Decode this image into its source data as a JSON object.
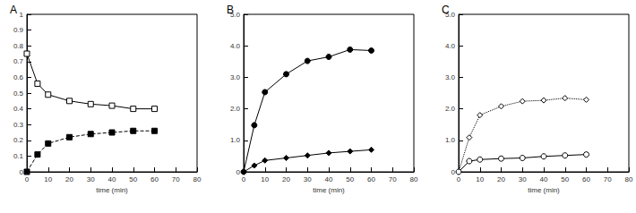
{
  "chart_data": [
    {
      "type": "line",
      "title": "A",
      "x_label": "time (min)",
      "xlim": [
        0,
        80
      ],
      "xticks": [
        0,
        10,
        20,
        30,
        40,
        50,
        60,
        70,
        80
      ],
      "ylim": [
        0,
        1
      ],
      "yticks": [
        0,
        0.1,
        0.2,
        0.3,
        0.4,
        0.5,
        0.6,
        0.7,
        0.8,
        0.9,
        1
      ],
      "grid": false,
      "x": [
        0,
        5,
        10,
        20,
        30,
        40,
        50,
        60
      ],
      "series": [
        {
          "color": "#000000",
          "marker": "square-open",
          "line_style": "solid",
          "values": [
            0.75,
            0.56,
            0.49,
            0.45,
            0.43,
            0.42,
            0.4,
            0.4
          ]
        },
        {
          "color": "#000000",
          "marker": "square",
          "line_style": "dashed",
          "values": [
            0,
            0.11,
            0.18,
            0.22,
            0.24,
            0.25,
            0.26,
            0.26
          ]
        }
      ]
    },
    {
      "type": "line",
      "title": "B",
      "x_label": "time (min)",
      "xlim": [
        0,
        80
      ],
      "xticks": [
        0,
        10,
        20,
        30,
        40,
        50,
        60,
        70,
        80
      ],
      "ylim": [
        0,
        5
      ],
      "yticks": [
        0,
        {
          "value": 1,
          "label": "1.0"
        },
        {
          "value": 2,
          "label": "2.0"
        },
        {
          "value": 3,
          "label": "3.0"
        },
        {
          "value": 4,
          "label": "4.0"
        },
        {
          "value": 5,
          "label": "5.0"
        }
      ],
      "grid": false,
      "x": [
        0,
        5,
        10,
        20,
        30,
        40,
        50,
        60
      ],
      "series": [
        {
          "color": "#000000",
          "marker": "circle",
          "line_style": "solid",
          "values": [
            0,
            1.48,
            2.53,
            3.1,
            3.52,
            3.65,
            3.88,
            3.85
          ]
        },
        {
          "color": "#000000",
          "marker": "diamond",
          "line_style": "solid",
          "values": [
            0,
            0.2,
            0.36,
            0.44,
            0.52,
            0.6,
            0.65,
            0.7
          ]
        }
      ]
    },
    {
      "type": "line",
      "title": "C",
      "x_label": "time (min)",
      "xlim": [
        0,
        80
      ],
      "xticks": [
        0,
        10,
        20,
        30,
        40,
        50,
        60,
        70,
        80
      ],
      "ylim": [
        0,
        5
      ],
      "yticks": [
        0,
        {
          "value": 1,
          "label": "1.0"
        },
        {
          "value": 2,
          "label": "2.0"
        },
        {
          "value": 3,
          "label": "3.0"
        },
        {
          "value": 4,
          "label": "4.0"
        },
        {
          "value": 5,
          "label": "5.0"
        }
      ],
      "grid": false,
      "x": [
        0,
        5,
        10,
        20,
        30,
        40,
        50,
        60
      ],
      "series": [
        {
          "color": "#000000",
          "marker": "diamond-open",
          "line_style": "dotted",
          "values": [
            0,
            1.09,
            1.8,
            2.08,
            2.24,
            2.27,
            2.34,
            2.29
          ]
        },
        {
          "color": "#000000",
          "marker": "circle-open",
          "line_style": "solid",
          "values": [
            0,
            0.34,
            0.39,
            0.42,
            0.44,
            0.49,
            0.52,
            0.55
          ]
        }
      ]
    }
  ]
}
